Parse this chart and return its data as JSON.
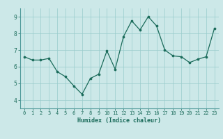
{
  "x": [
    0,
    1,
    2,
    3,
    4,
    5,
    6,
    7,
    8,
    9,
    10,
    11,
    12,
    13,
    14,
    15,
    16,
    17,
    18,
    19,
    20,
    21,
    22,
    23
  ],
  "y": [
    6.6,
    6.4,
    6.4,
    6.5,
    5.7,
    5.4,
    4.85,
    4.35,
    5.3,
    5.55,
    6.95,
    5.85,
    7.8,
    8.75,
    8.2,
    9.0,
    8.45,
    7.0,
    6.65,
    6.6,
    6.25,
    6.45,
    6.6,
    8.3
  ],
  "xlabel": "Humidex (Indice chaleur)",
  "ylim": [
    3.5,
    9.5
  ],
  "xlim": [
    -0.5,
    23.5
  ],
  "yticks": [
    4,
    5,
    6,
    7,
    8,
    9
  ],
  "xticks": [
    0,
    1,
    2,
    3,
    4,
    5,
    6,
    7,
    8,
    9,
    10,
    11,
    12,
    13,
    14,
    15,
    16,
    17,
    18,
    19,
    20,
    21,
    22,
    23
  ],
  "line_color": "#1a6b5a",
  "marker_color": "#1a6b5a",
  "bg_color": "#cce8e8",
  "grid_color": "#99cccc",
  "fig_bg": "#cce8e8",
  "tick_color": "#1a6b5a",
  "spine_color": "#4d9999"
}
